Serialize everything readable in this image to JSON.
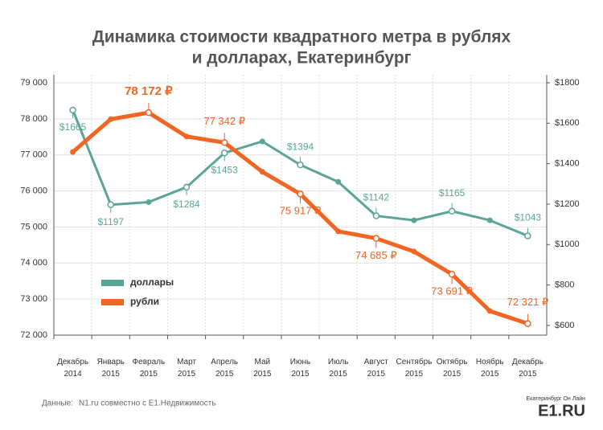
{
  "chart_data": {
    "type": "line",
    "title": [
      "Динамика стоимости квадратного метра в рублях",
      "и долларах, Екатеринбург"
    ],
    "categories": [
      "Декабрь 2014",
      "Январь 2015",
      "Февраль 2015",
      "Март 2015",
      "Апрель 2015",
      "Май 2015",
      "Июнь 2015",
      "Июль 2015",
      "Август 2015",
      "Сентябрь 2015",
      "Октябрь 2015",
      "Ноябрь 2015",
      "Декабрь 2015"
    ],
    "series": [
      {
        "name": "доллары",
        "color": "#5ba596",
        "axis": "y2",
        "values": [
          1665,
          1197,
          1210,
          1284,
          1453,
          1510,
          1394,
          1310,
          1142,
          1120,
          1165,
          1120,
          1043
        ],
        "value_labels": [
          "$1665",
          "$1197",
          null,
          "$1284",
          "$1453",
          null,
          "$1394",
          null,
          "$1142",
          null,
          "$1165",
          null,
          "$1043"
        ]
      },
      {
        "name": "рубли",
        "color": "#f26522",
        "values": [
          77080,
          77990,
          78172,
          77510,
          77342,
          76530,
          75917,
          74880,
          74685,
          74320,
          73691,
          72670,
          72321
        ],
        "value_labels": [
          null,
          null,
          "78 172 ₽",
          null,
          "77 342 ₽",
          null,
          "75 917 ₽",
          null,
          "74 685 ₽",
          null,
          "73 691 ₽",
          null,
          "72 321 ₽"
        ]
      }
    ],
    "ylim": [
      72000,
      79000
    ],
    "yticks": [
      {
        "value": 72000,
        "label": "72 000"
      },
      {
        "value": 73000,
        "label": "73 000"
      },
      {
        "value": 74000,
        "label": "74 000"
      },
      {
        "value": 75000,
        "label": "75 000"
      },
      {
        "value": 76000,
        "label": "76 000"
      },
      {
        "value": 77000,
        "label": "77 000"
      },
      {
        "value": 78000,
        "label": "78 000"
      },
      {
        "value": 79000,
        "label": "79 000"
      }
    ],
    "y2lim": [
      552,
      1800
    ],
    "y2ticks": [
      {
        "value": 600,
        "label": "$600"
      },
      {
        "value": 800,
        "label": "$800"
      },
      {
        "value": 1000,
        "label": "$1000"
      },
      {
        "value": 1200,
        "label": "$1200"
      },
      {
        "value": 1400,
        "label": "$1400"
      },
      {
        "value": 1600,
        "label": "$1600"
      },
      {
        "value": 1800,
        "label": "$1800"
      }
    ],
    "grid": true,
    "source": [
      "Данные:",
      "N1.ru совместно с E1.Недвижимость"
    ],
    "logo": [
      "Екатеринбург Он Лайн",
      "E1.RU"
    ]
  }
}
